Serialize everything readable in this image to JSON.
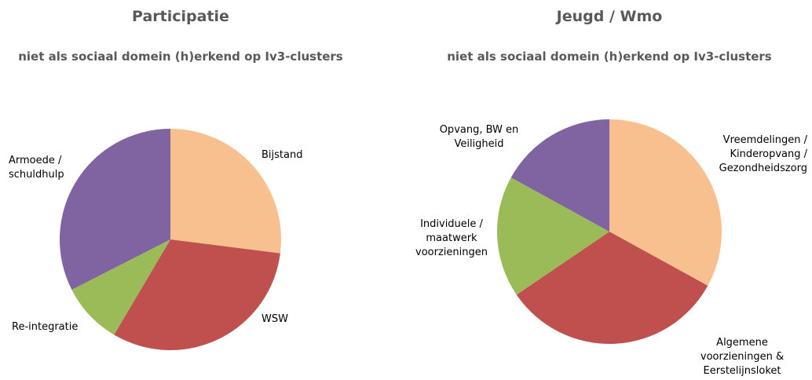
{
  "chart_data": [
    {
      "type": "pie",
      "title": "Participatie",
      "subtitle": "niet als sociaal domein (h)erkend op Iv3-clusters",
      "categories": [
        "Bijstand",
        "WSW",
        "Re-integratie",
        "Armoede / schuldhulp"
      ],
      "values": [
        27,
        31.5,
        9,
        32.5
      ],
      "colors": [
        "#f9c08f",
        "#c0504d",
        "#9bbb59",
        "#8064a2"
      ]
    },
    {
      "type": "pie",
      "title": "Jeugd / Wmo",
      "subtitle": "niet als sociaal domein (h)erkend op Iv3-clusters",
      "categories": [
        "Vreemdelingen / Kinderopvang / Gezondheidszorg",
        "Algemene voorzieningen & Eerstelijnsloket",
        "Individuele / maatwerk voorzieningen",
        "Opvang, BW en Veiligheid"
      ],
      "values": [
        33,
        32.5,
        17.5,
        17
      ],
      "colors": [
        "#f9c08f",
        "#c0504d",
        "#9bbb59",
        "#8064a2"
      ]
    }
  ]
}
